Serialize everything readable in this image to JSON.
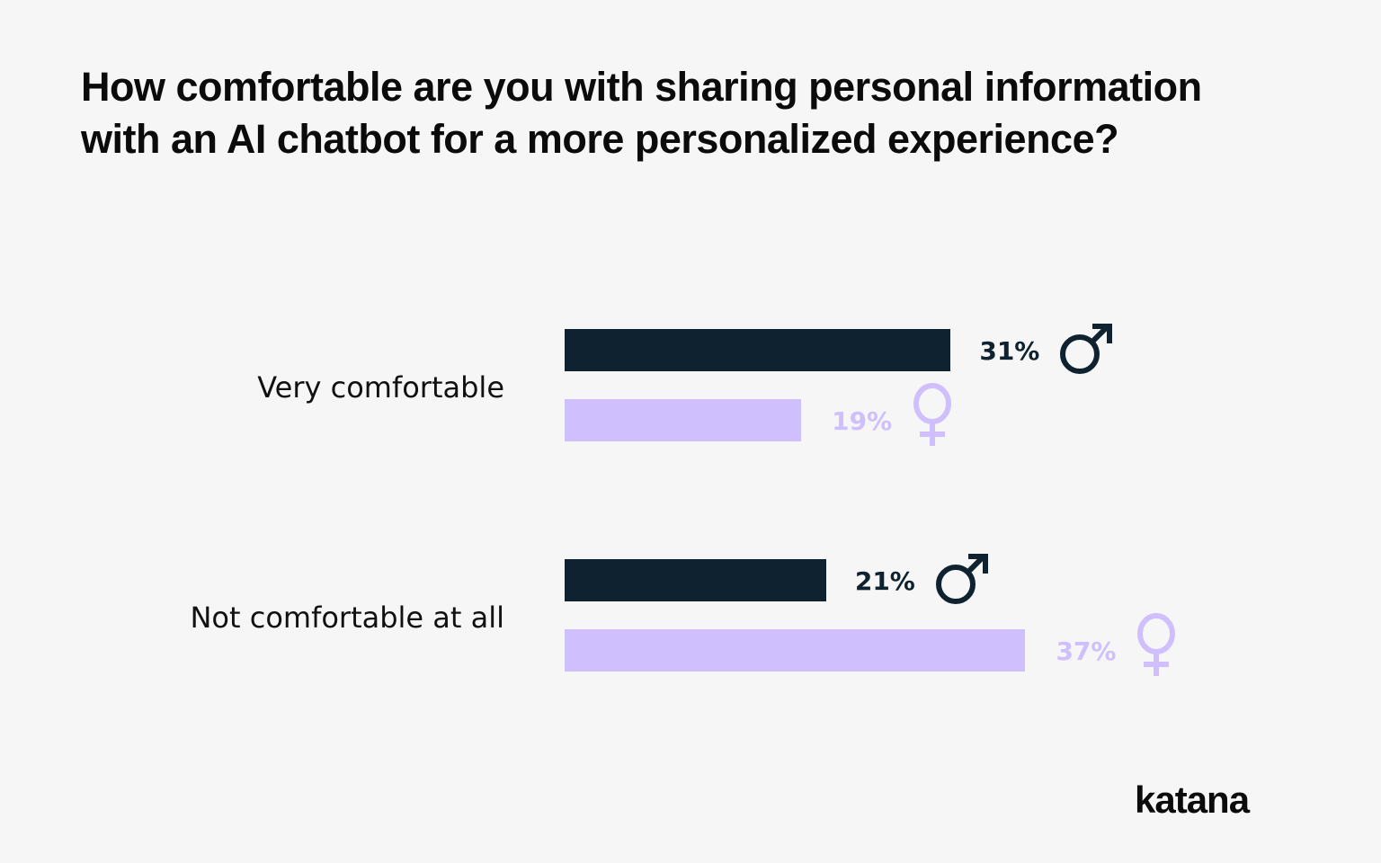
{
  "title": "How comfortable are you with sharing personal information with an AI chatbot for a more personalized experience?",
  "colors": {
    "male": "#0f2230",
    "female": "#cfbffc",
    "background": "#f6f6f6"
  },
  "groups": [
    {
      "label": "Very comfortable",
      "male": {
        "value": 31,
        "label": "31%",
        "icon": "male-symbol-icon"
      },
      "female": {
        "value": 19,
        "label": "19%",
        "icon": "female-symbol-icon"
      }
    },
    {
      "label": "Not comfortable at all",
      "male": {
        "value": 21,
        "label": "21%",
        "icon": "male-symbol-icon"
      },
      "female": {
        "value": 37,
        "label": "37%",
        "icon": "female-symbol-icon"
      }
    }
  ],
  "logo": "katana",
  "chart_data": {
    "type": "bar",
    "orientation": "horizontal",
    "title": "How comfortable are you with sharing personal information with an AI chatbot for a more personalized experience?",
    "categories": [
      "Very comfortable",
      "Not comfortable at all"
    ],
    "series": [
      {
        "name": "Male",
        "color": "#0f2230",
        "values": [
          31,
          21
        ]
      },
      {
        "name": "Female",
        "color": "#cfbffc",
        "values": [
          19,
          37
        ]
      }
    ],
    "unit": "%",
    "xlabel": "",
    "ylabel": "",
    "grid": false,
    "legend": "gender symbols next to bar labels"
  }
}
